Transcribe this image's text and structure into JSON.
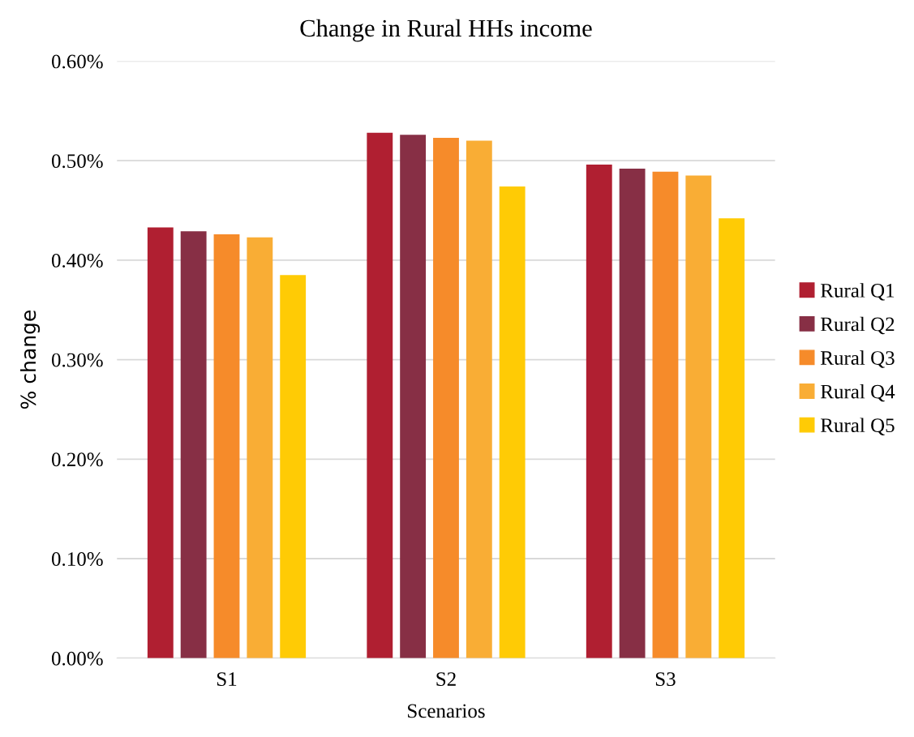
{
  "chart_data": {
    "type": "bar",
    "title": "Change in Rural HHs income",
    "xlabel": "Scenarios",
    "ylabel": "% change",
    "categories": [
      "S1",
      "S2",
      "S3"
    ],
    "series": [
      {
        "name": "Rural Q1",
        "color": "#b01f31",
        "values": [
          0.433,
          0.528,
          0.496
        ]
      },
      {
        "name": "Rural Q2",
        "color": "#872f45",
        "values": [
          0.429,
          0.526,
          0.492
        ]
      },
      {
        "name": "Rural Q3",
        "color": "#f68b2a",
        "values": [
          0.426,
          0.523,
          0.489
        ]
      },
      {
        "name": "Rural Q4",
        "color": "#f9ad35",
        "values": [
          0.423,
          0.52,
          0.485
        ]
      },
      {
        "name": "Rural Q5",
        "color": "#ffcb05",
        "values": [
          0.385,
          0.474,
          0.442
        ]
      }
    ],
    "ylim": [
      0,
      0.6
    ],
    "yticks": [
      {
        "value": 0,
        "label": "0.00%"
      },
      {
        "value": 0.1,
        "label": "0.10%"
      },
      {
        "value": 0.2,
        "label": "0.20%"
      },
      {
        "value": 0.3,
        "label": "0.30%"
      },
      {
        "value": 0.4,
        "label": "0.40%"
      },
      {
        "value": 0.5,
        "label": "0.50%"
      },
      {
        "value": 0.6,
        "label": "0.60%"
      }
    ],
    "grid": "y",
    "legend": "right"
  }
}
